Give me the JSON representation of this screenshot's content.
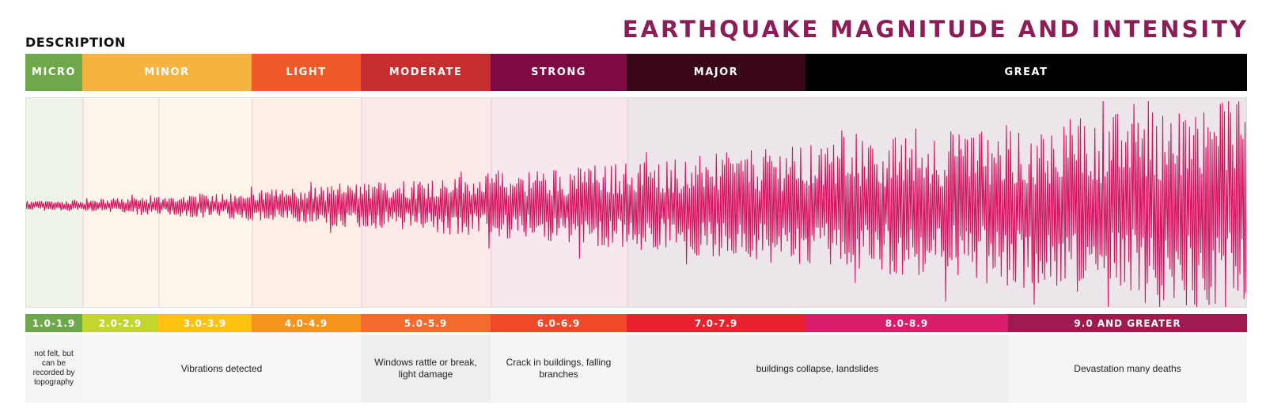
{
  "title": "EARTHQUAKE MAGNITUDE AND INTENSITY",
  "subtitle": "DESCRIPTION",
  "classes": [
    {
      "label": "MICRO",
      "color": "#6fa84a"
    },
    {
      "label": "MINOR",
      "color": "#f7b33f"
    },
    {
      "label": "LIGHT",
      "color": "#ef5a28"
    },
    {
      "label": "MODERATE",
      "color": "#c62d2f"
    },
    {
      "label": "STRONG",
      "color": "#7d0a42"
    },
    {
      "label": "MAJOR",
      "color": "#3a0718"
    },
    {
      "label": "GREAT",
      "color": "#000000"
    }
  ],
  "magnitudes": [
    {
      "label": "1.0-1.9",
      "color": "#6fa84a"
    },
    {
      "label": "2.0-2.9",
      "color": "#c2d62e"
    },
    {
      "label": "3.0-3.9",
      "color": "#fdc20f"
    },
    {
      "label": "4.0-4.9",
      "color": "#f7941d"
    },
    {
      "label": "5.0-5.9",
      "color": "#f26b2d"
    },
    {
      "label": "6.0-6.9",
      "color": "#ee4a2a"
    },
    {
      "label": "7.0-7.9",
      "color": "#e8222e"
    },
    {
      "label": "8.0-8.9",
      "color": "#d91d6b"
    },
    {
      "label": "9.0 AND GREATER",
      "color": "#9f1a4f"
    }
  ],
  "descriptions": [
    {
      "text": "not felt, but can be recorded by topography"
    },
    {
      "text": "Vibrations detected"
    },
    {
      "text": "Windows rattle or break, light damage"
    },
    {
      "text": "Crack in buildings, falling branches"
    },
    {
      "text": "buildings collapse, landslides"
    },
    {
      "text": "Devastation many deaths"
    }
  ],
  "waveform": {
    "color": "#d3135f"
  },
  "panel_tints": [
    "#eef5e8",
    "#fdf5ea",
    "#fdeee6",
    "#fbe9e8",
    "#f6e8ee",
    "#ece6ea"
  ]
}
